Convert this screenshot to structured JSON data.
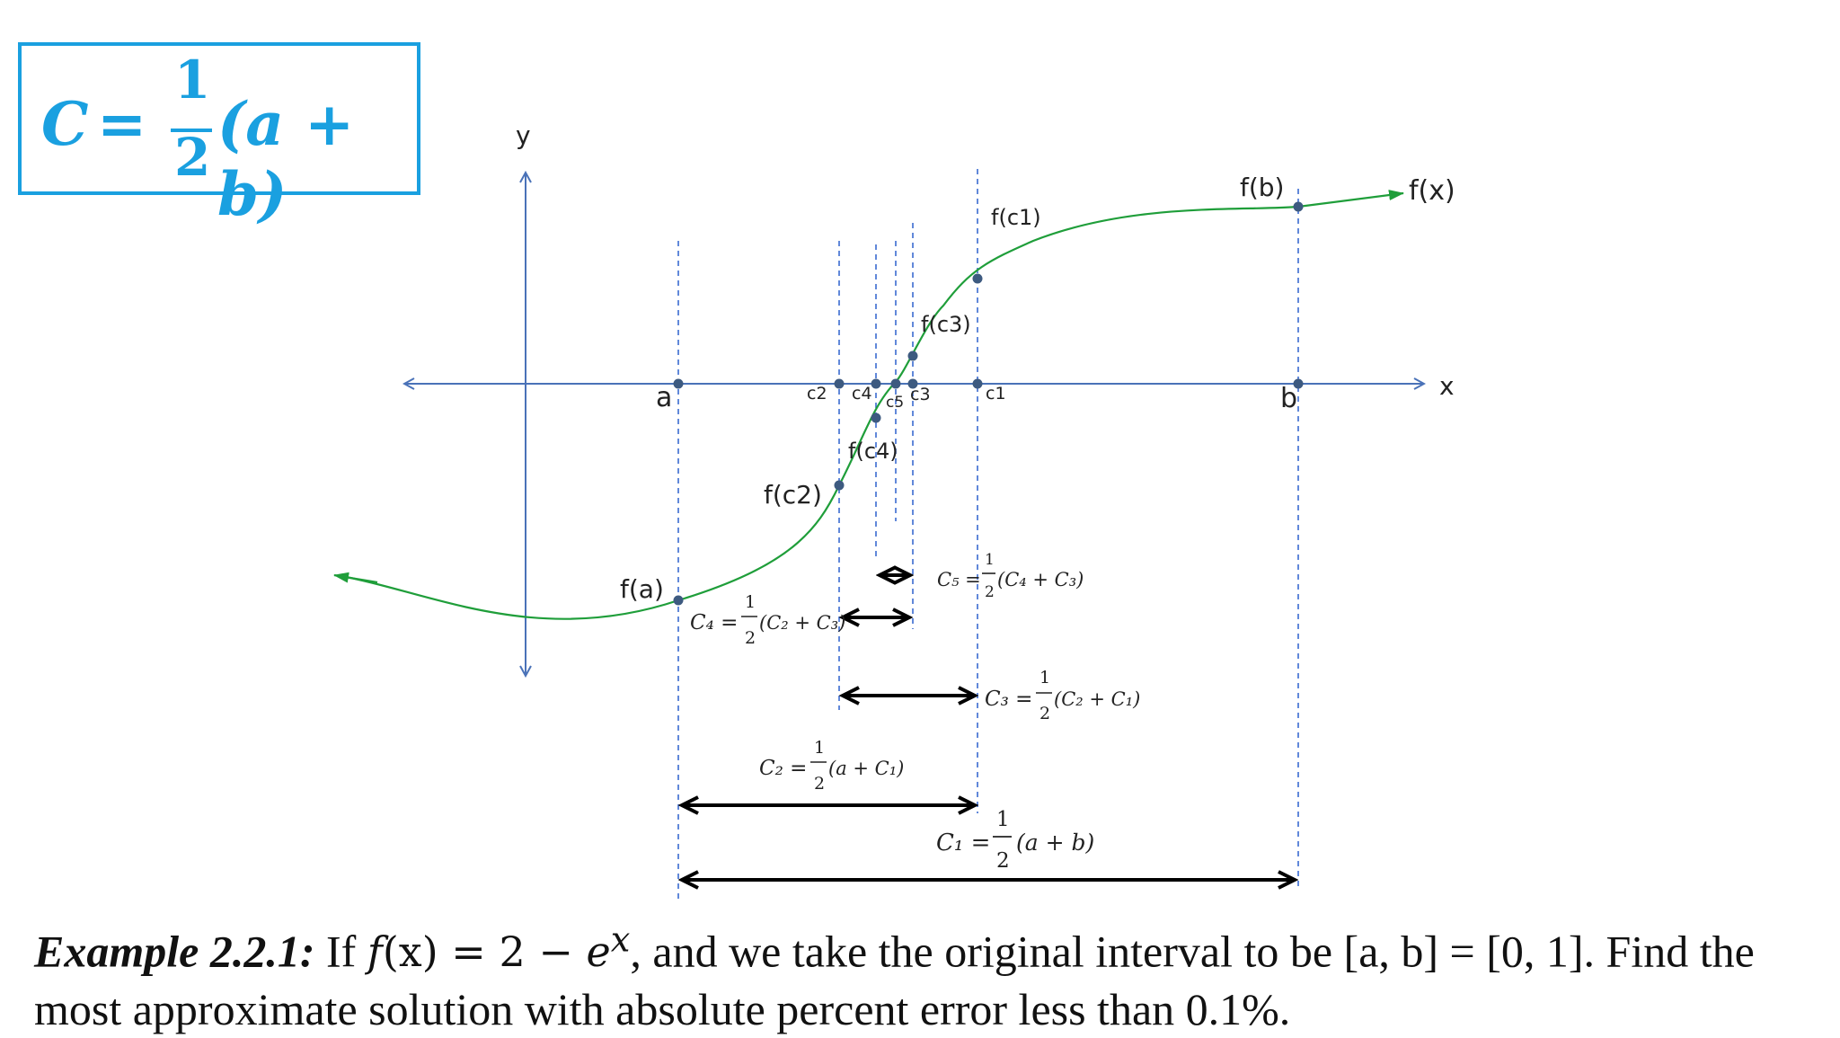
{
  "formula_box": {
    "lhs": "C",
    "eq": "=",
    "num": "1",
    "den": "2",
    "rhs": "(a + b)"
  },
  "axes": {
    "y_label": "y",
    "x_label": "x"
  },
  "curve_label": "f(x)",
  "points": {
    "a": "a",
    "b": "b",
    "c1": "c1",
    "c2": "c2",
    "c3": "c3",
    "c4": "c4",
    "c5": "c5",
    "fa": "f(a)",
    "fb": "f(b)",
    "fc1": "f(c1)",
    "fc2": "f(c2)",
    "fc3": "f(c3)",
    "fc4": "f(c4)"
  },
  "formulas": {
    "c1": {
      "lhs": "C₁ =",
      "num": "1",
      "den": "2",
      "rhs": "(a + b)"
    },
    "c2": {
      "lhs": "C₂ =",
      "num": "1",
      "den": "2",
      "rhs": "(a + C₁)"
    },
    "c3": {
      "lhs": "C₃ =",
      "num": "1",
      "den": "2",
      "rhs": "(C₂ + C₁)"
    },
    "c4": {
      "lhs": "C₄ =",
      "num": "1",
      "den": "2",
      "rhs": "(C₂ + C₃)"
    },
    "c5": {
      "lhs": "C₅ =",
      "num": "1",
      "den": "2",
      "rhs": "(C₄ + C₃)"
    }
  },
  "example": {
    "label": "Example 2.2.1:",
    "if": "If",
    "fx": "f",
    "fx_arg": "(x)",
    "eq": " = 2 − ",
    "e": "e",
    "sup": "x",
    "rest": ", and we take the original interval to be [a, b] = [0, 1]. Find the most approximate solution with absolute percent error less than 0.1%."
  },
  "colors": {
    "accent": "#1aa0e0",
    "axis": "#4a72b8",
    "curve": "#1f9e3a",
    "point": "#3d5a80",
    "arrow": "#000000"
  }
}
